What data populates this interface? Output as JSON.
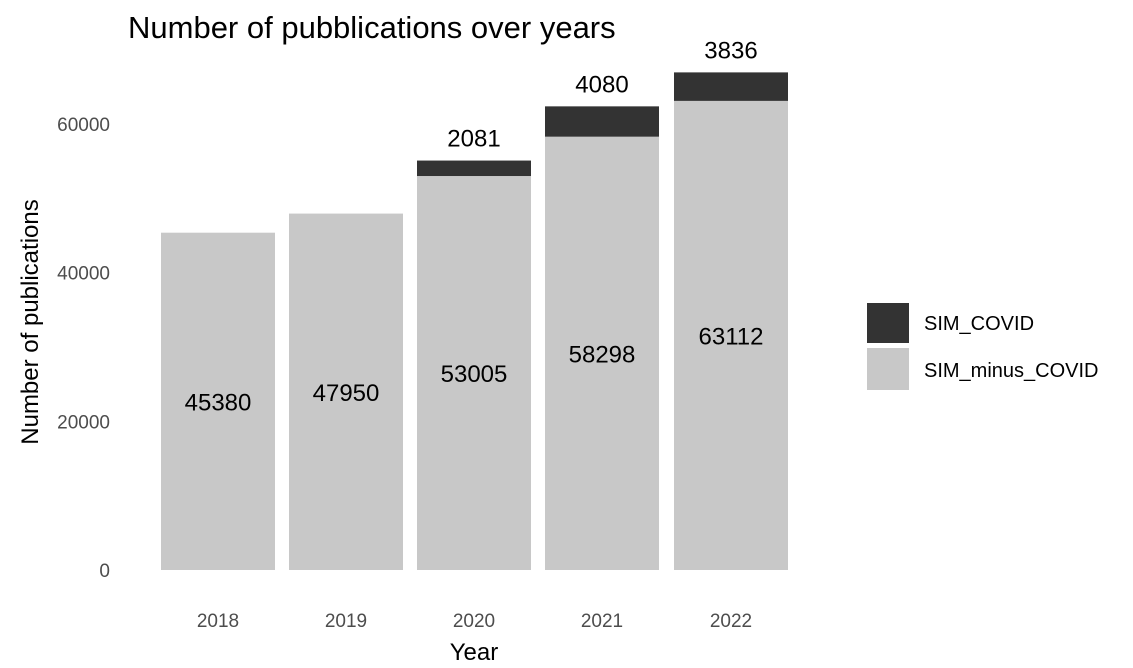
{
  "chart_data": {
    "type": "bar",
    "stacked": true,
    "title": "Number of pubblications over years",
    "xlabel": "Year",
    "ylabel": "Number of publications",
    "categories": [
      "2018",
      "2019",
      "2020",
      "2021",
      "2022"
    ],
    "series": [
      {
        "name": "SIM_minus_COVID",
        "color": "#c8c8c8",
        "values": [
          45380,
          47950,
          53005,
          58298,
          63112
        ]
      },
      {
        "name": "SIM_COVID",
        "color": "#333333",
        "values": [
          0,
          0,
          2081,
          4080,
          3836
        ]
      }
    ],
    "ylim": [
      0,
      67000
    ],
    "yticks": [
      0,
      20000,
      40000,
      60000
    ],
    "ytick_labels": [
      "0",
      "20000",
      "40000",
      "60000"
    ],
    "grid": false,
    "legend": {
      "position": "right",
      "entries": [
        "SIM_COVID",
        "SIM_minus_COVID"
      ]
    }
  }
}
